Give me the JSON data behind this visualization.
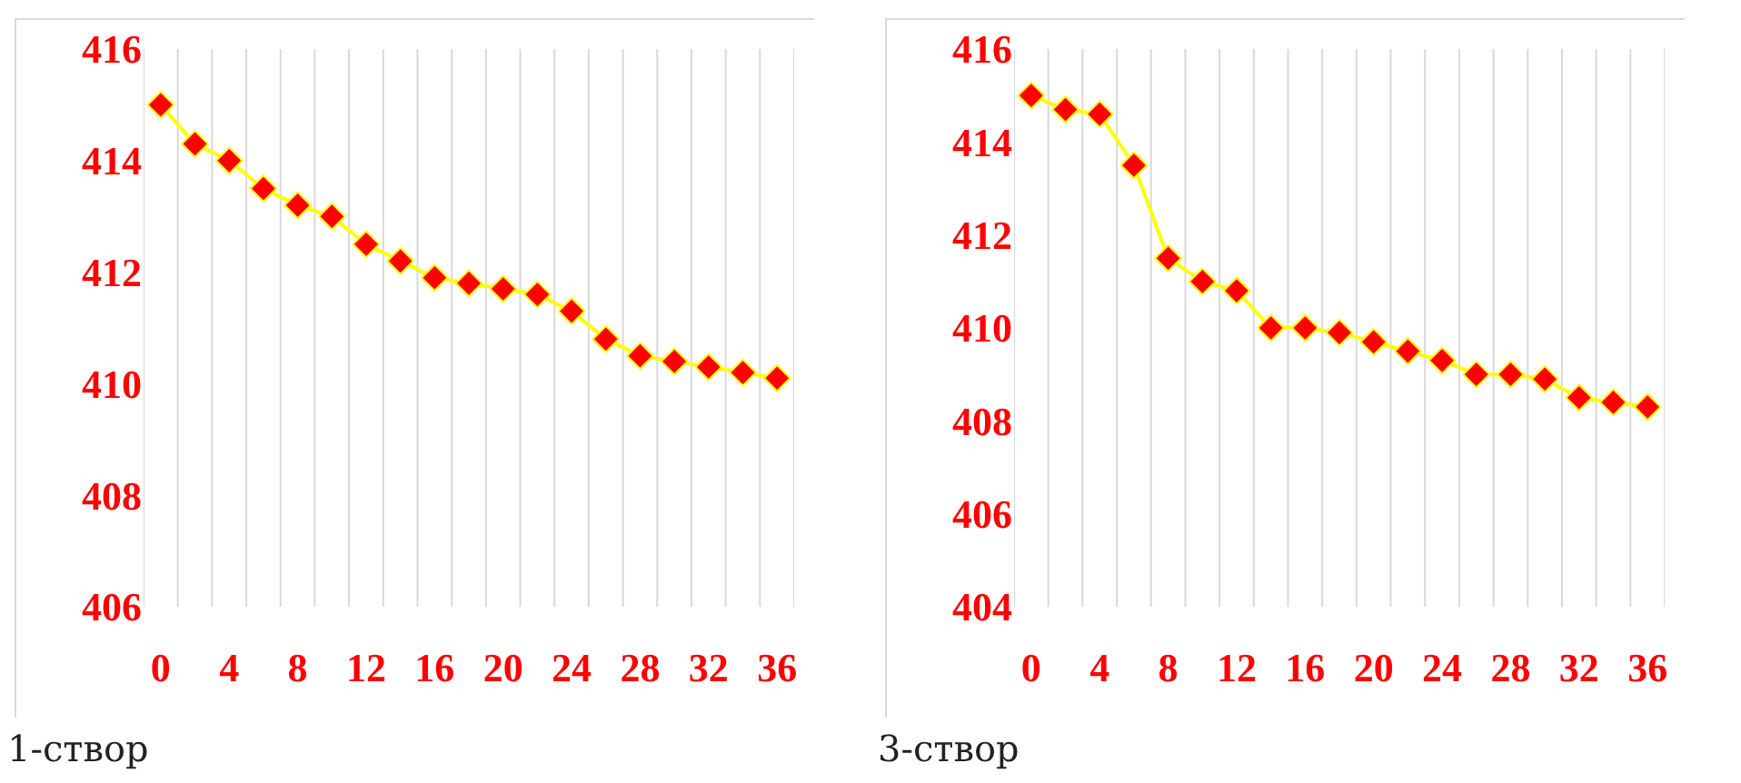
{
  "chart_data": [
    {
      "type": "line",
      "x": [
        0,
        2,
        4,
        6,
        8,
        10,
        12,
        14,
        16,
        18,
        20,
        22,
        24,
        26,
        28,
        30,
        32,
        34,
        36
      ],
      "series": [
        {
          "color": "#ffff00",
          "values": [
            415.0,
            414.3,
            414.0,
            413.5,
            413.2,
            413.0,
            412.5,
            412.2,
            411.9,
            411.8,
            411.7,
            411.6,
            411.3,
            410.8,
            410.5,
            410.4,
            410.3,
            410.2,
            410.1
          ]
        }
      ],
      "xlim": [
        -1,
        37
      ],
      "xticks": [
        {
          "value": -1,
          "label": null
        },
        0,
        {
          "value": 1,
          "label": null
        },
        {
          "value": 3,
          "label": null
        },
        4,
        {
          "value": 5,
          "label": null
        },
        {
          "value": 7,
          "label": null
        },
        8,
        {
          "value": 9,
          "label": null
        },
        {
          "value": 11,
          "label": null
        },
        12,
        {
          "value": 13,
          "label": null
        },
        {
          "value": 15,
          "label": null
        },
        16,
        {
          "value": 17,
          "label": null
        },
        {
          "value": 19,
          "label": null
        },
        20,
        {
          "value": 21,
          "label": null
        },
        {
          "value": 23,
          "label": null
        },
        24,
        {
          "value": 25,
          "label": null
        },
        {
          "value": 27,
          "label": null
        },
        28,
        {
          "value": 29,
          "label": null
        },
        {
          "value": 31,
          "label": null
        },
        32,
        {
          "value": 33,
          "label": null
        },
        {
          "value": 35,
          "label": null
        },
        36,
        {
          "value": 37,
          "label": null
        }
      ],
      "ylim": [
        406,
        416
      ],
      "yticks": [
        406,
        408,
        410,
        412,
        414,
        416
      ],
      "grid": "x",
      "marker": "diamond",
      "line_style": "solid",
      "annotations": [
        "1-створ"
      ]
    },
    {
      "type": "line",
      "x": [
        0,
        2,
        4,
        6,
        8,
        10,
        12,
        14,
        16,
        18,
        20,
        22,
        24,
        26,
        28,
        30,
        32,
        34,
        36
      ],
      "series": [
        {
          "color": "#ffff00",
          "values": [
            415.0,
            414.7,
            414.6,
            413.5,
            411.5,
            411.0,
            410.8,
            410.0,
            410.0,
            409.9,
            409.7,
            409.5,
            409.3,
            409.0,
            409.0,
            408.9,
            408.5,
            408.4,
            408.3
          ]
        }
      ],
      "xlim": [
        -1,
        37
      ],
      "xticks": [
        {
          "value": -1,
          "label": null
        },
        0,
        {
          "value": 1,
          "label": null
        },
        {
          "value": 3,
          "label": null
        },
        4,
        {
          "value": 5,
          "label": null
        },
        {
          "value": 7,
          "label": null
        },
        8,
        {
          "value": 9,
          "label": null
        },
        {
          "value": 11,
          "label": null
        },
        12,
        {
          "value": 13,
          "label": null
        },
        {
          "value": 15,
          "label": null
        },
        16,
        {
          "value": 17,
          "label": null
        },
        {
          "value": 19,
          "label": null
        },
        20,
        {
          "value": 21,
          "label": null
        },
        {
          "value": 23,
          "label": null
        },
        24,
        {
          "value": 25,
          "label": null
        },
        {
          "value": 27,
          "label": null
        },
        28,
        {
          "value": 29,
          "label": null
        },
        {
          "value": 31,
          "label": null
        },
        32,
        {
          "value": 33,
          "label": null
        },
        {
          "value": 35,
          "label": null
        },
        36,
        {
          "value": 37,
          "label": null
        }
      ],
      "ylim": [
        404,
        416
      ],
      "yticks": [
        404,
        406,
        408,
        410,
        412,
        414,
        416
      ],
      "grid": "x",
      "marker": "diamond",
      "line_style": "solid",
      "annotations": [
        "3-створ"
      ]
    }
  ]
}
